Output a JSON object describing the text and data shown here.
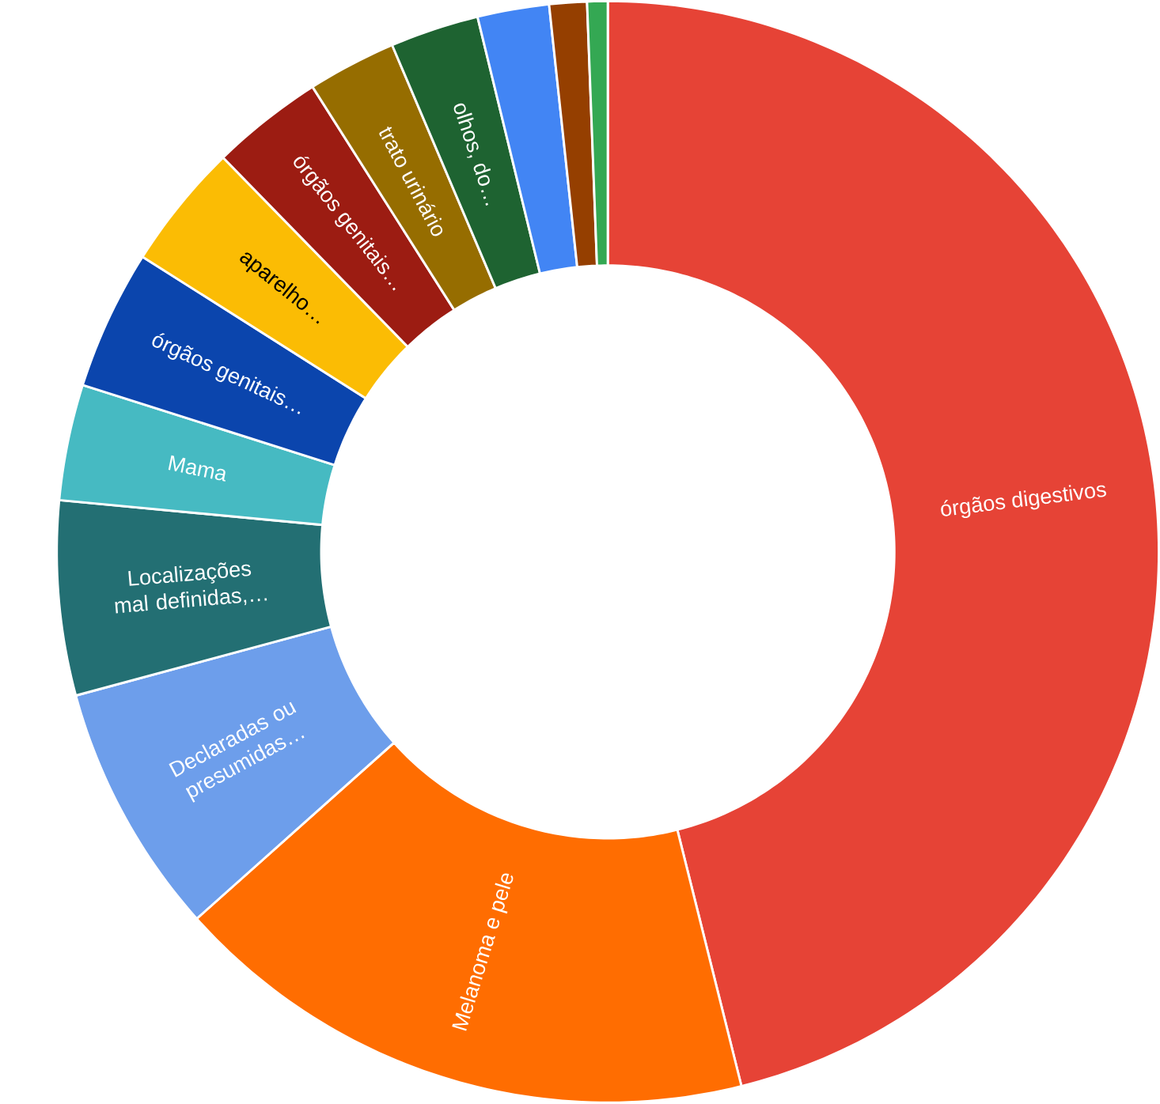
{
  "chart_data": {
    "type": "donut",
    "categories": [
      "órgãos digestivos",
      "Melanoma e pele",
      "Declaradas ou presumidas…",
      "Localizações mal definidas,…",
      "Mama",
      "órgãos genitais…",
      "aparelho…",
      "órgãos genitais…",
      "trato urinário",
      "olhos, do…",
      null,
      null,
      null
    ],
    "values": [
      46.1,
      17.3,
      7.4,
      5.7,
      3.4,
      4.1,
      3.7,
      3.3,
      2.6,
      2.6,
      2.1,
      1.1,
      0.6
    ],
    "colors": [
      "#e64336",
      "#ff6d01",
      "#6d9eeb",
      "#236f73",
      "#46bac2",
      "#0b45ad",
      "#fbbc04",
      "#9c1c12",
      "#966d00",
      "#1e6331",
      "#4285f4",
      "#953f00",
      "#34a853"
    ]
  }
}
